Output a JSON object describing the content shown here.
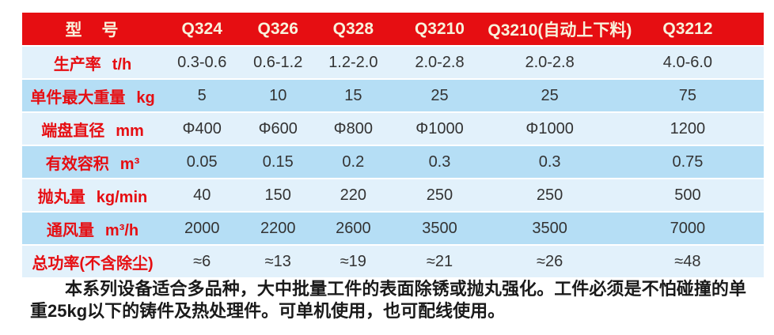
{
  "colors": {
    "header_red": "#e60e12",
    "header_text_cream": "#f8f2dc",
    "row_light_blue": "#e2f1fb",
    "row_mid_blue": "#b5def5",
    "value_text": "#333333"
  },
  "table": {
    "header": {
      "label": "型　号",
      "models": [
        "Q324",
        "Q326",
        "Q328",
        "Q3210",
        "Q3210(自动上下料)",
        "Q3212"
      ]
    },
    "col_widths": [
      "19%",
      "10.5%",
      "10%",
      "10.3%",
      "13%",
      "16.7%",
      "20.5%"
    ],
    "rows": [
      {
        "label": "生产率",
        "unit": "t/h",
        "values": [
          "0.3-0.6",
          "0.6-1.2",
          "1.2-2.0",
          "2.0-2.8",
          "2.0-2.8",
          "4.0-6.0"
        ]
      },
      {
        "label": "单件最大重量",
        "unit": "kg",
        "values": [
          "5",
          "10",
          "15",
          "25",
          "25",
          "75"
        ]
      },
      {
        "label": "端盘直径",
        "unit": "mm",
        "values": [
          "Φ400",
          "Φ600",
          "Φ800",
          "Φ1000",
          "Φ1000",
          "1200"
        ]
      },
      {
        "label": "有效容积",
        "unit": "m³",
        "values": [
          "0.05",
          "0.15",
          "0.2",
          "0.3",
          "0.3",
          "0.75"
        ]
      },
      {
        "label": "抛丸量",
        "unit": "kg/min",
        "values": [
          "40",
          "150",
          "220",
          "250",
          "250",
          "500"
        ]
      },
      {
        "label": "通风量",
        "unit": "m³/h",
        "values": [
          "2000",
          "2200",
          "2600",
          "3500",
          "3500",
          "7000"
        ]
      },
      {
        "label": "总功率(不含除尘)",
        "unit": "",
        "values": [
          "≈6",
          "≈13",
          "≈19",
          "≈21",
          "≈26",
          "≈48"
        ]
      }
    ]
  },
  "description": "本系列设备适合多品种，大中批量工件的表面除锈或抛丸强化。工件必须是不怕碰撞的单重25kg以下的铸件及热处理件。可单机使用，也可配线使用。"
}
